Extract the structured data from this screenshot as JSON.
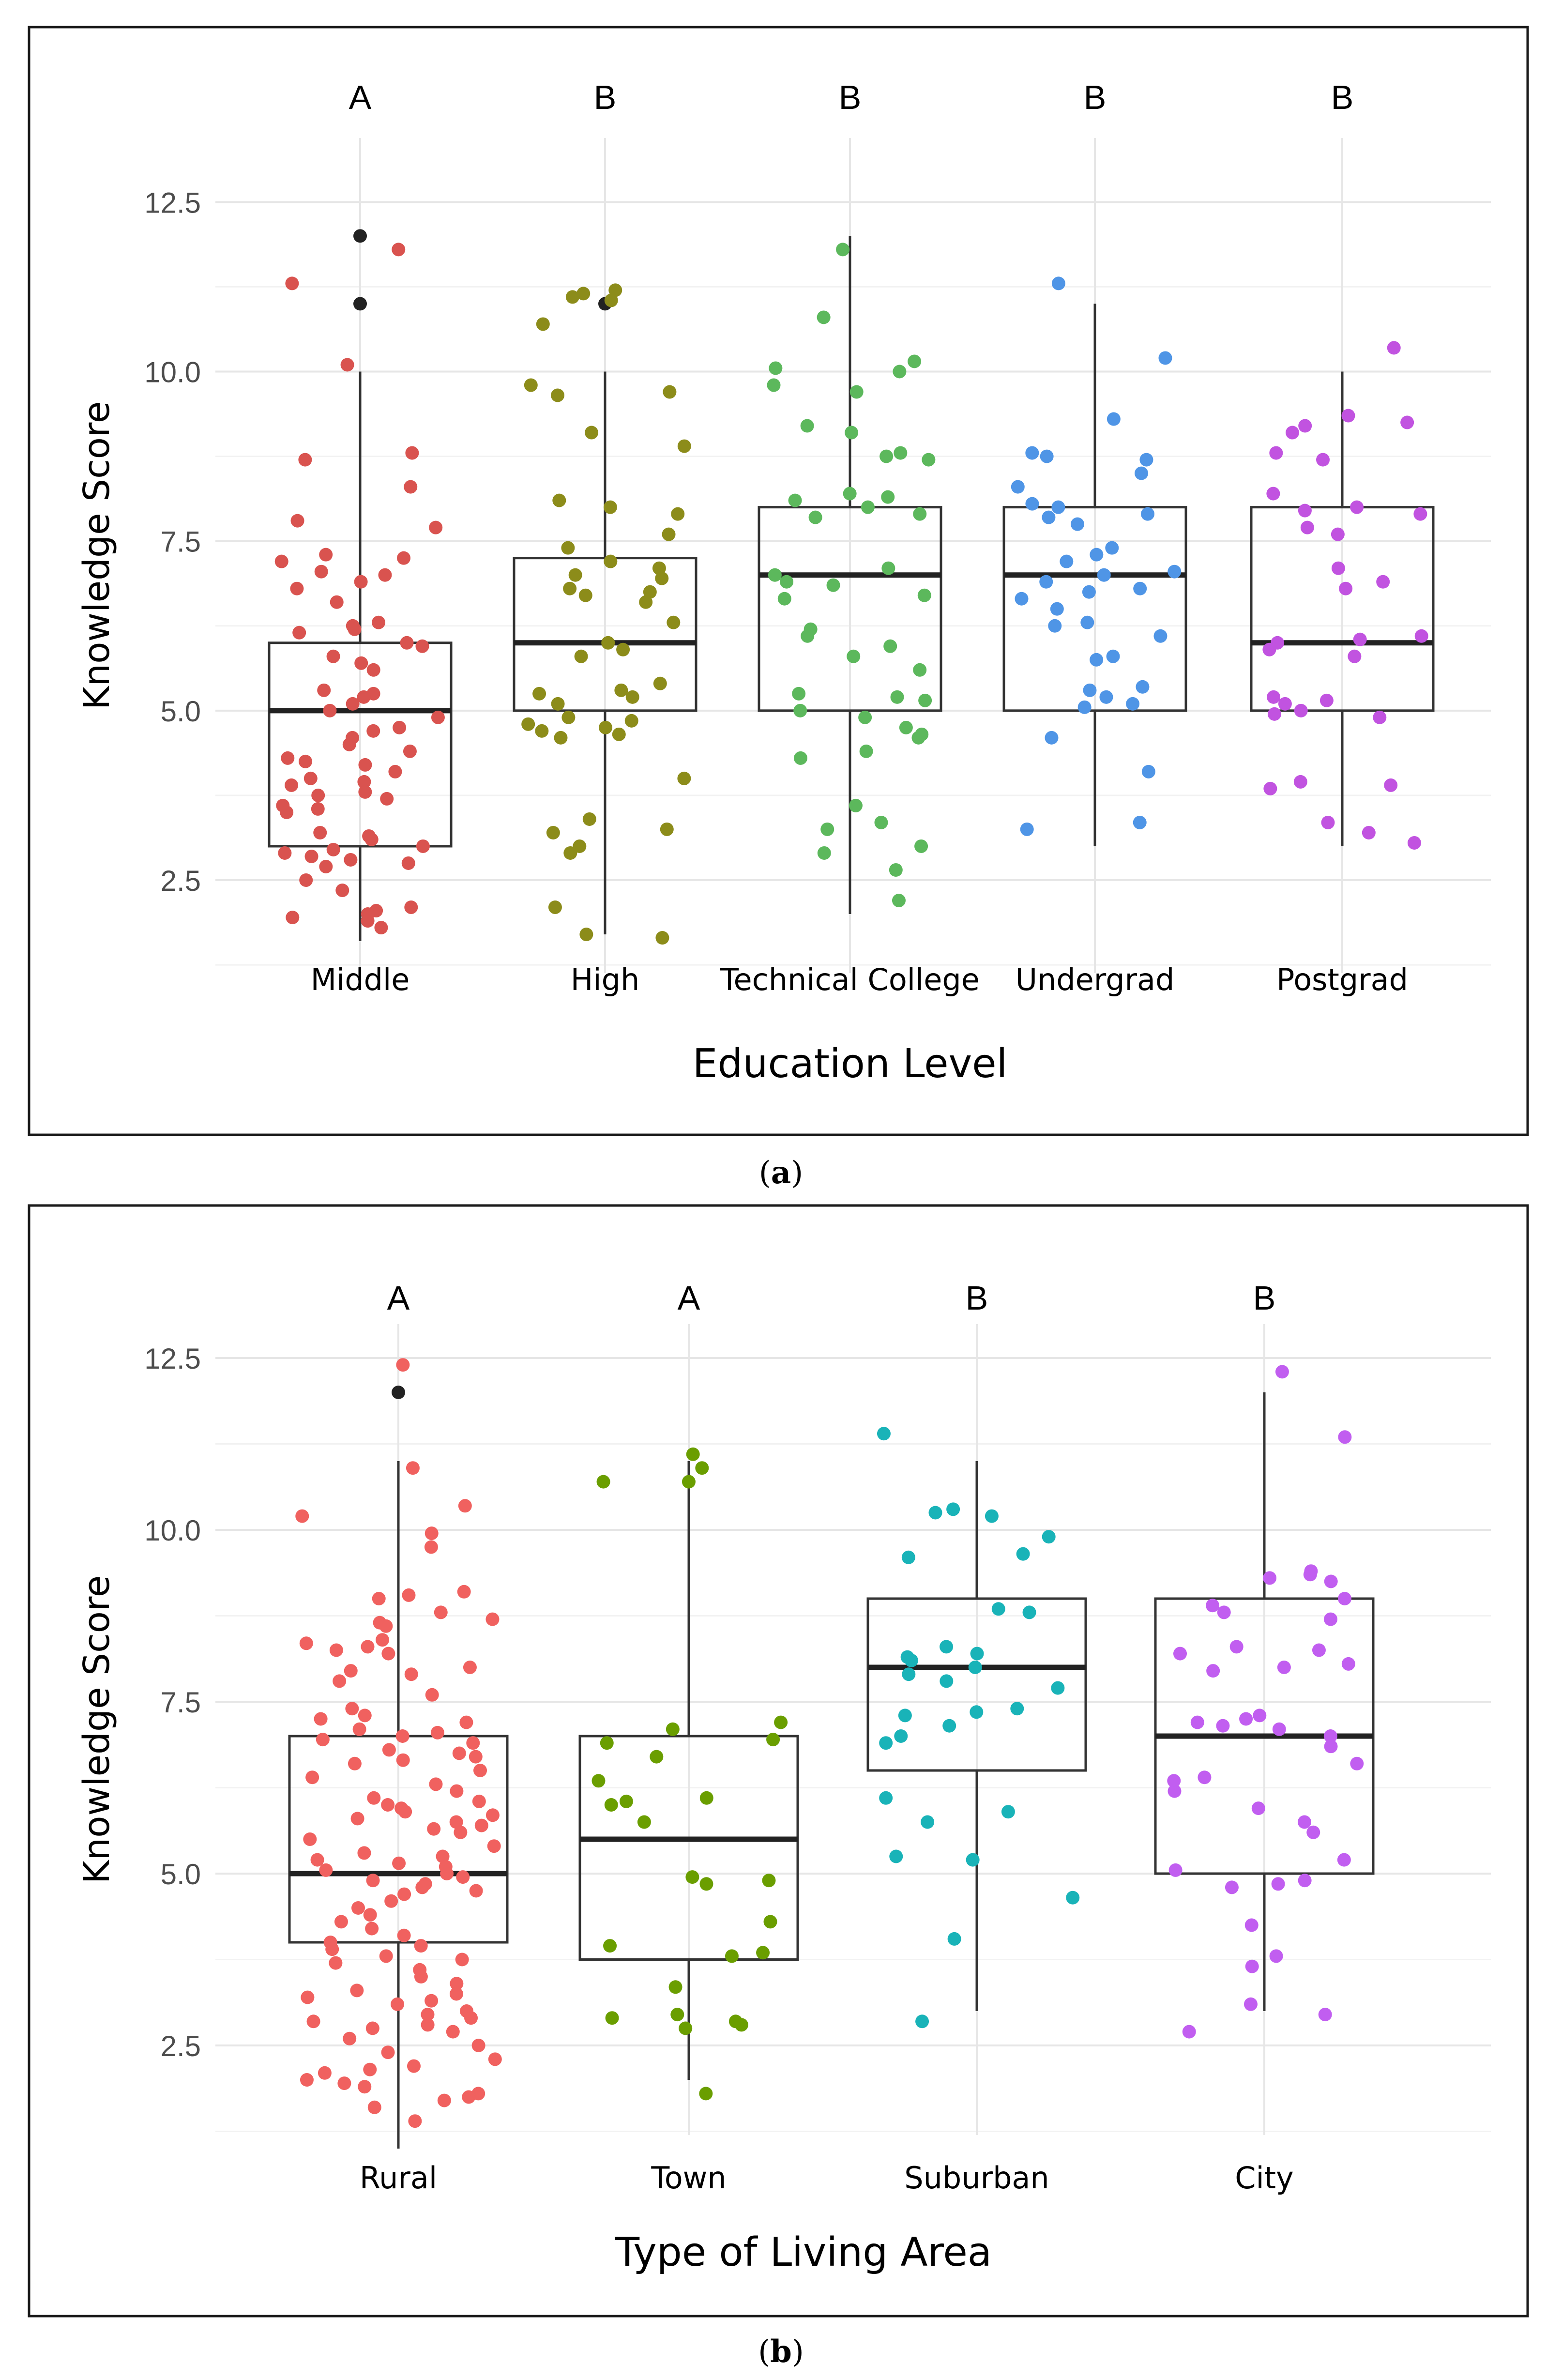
{
  "figure": {
    "caption_a_label": "a",
    "caption_b_label": "b"
  },
  "chart_data": [
    {
      "type": "box",
      "panel": "a",
      "title": "",
      "xlabel": "Education Level",
      "ylabel": "Knowledge Score",
      "ylim": [
        1.3,
        12.9
      ],
      "yticks": [
        2.5,
        5.0,
        7.5,
        10.0,
        12.5
      ],
      "ytick_labels": [
        "2.5",
        "5.0",
        "7.5",
        "10.0",
        "12.5"
      ],
      "grid": true,
      "legend": "none",
      "categories": [
        "Middle",
        "High",
        "Technical College",
        "Undergrad",
        "Postgrad"
      ],
      "group_letters": [
        "A",
        "B",
        "B",
        "B",
        "B"
      ],
      "colors": [
        "#d9534f",
        "#8c8c1a",
        "#5cb85c",
        "#4f95e6",
        "#c153e0"
      ],
      "outlier_color": "#222222",
      "boxes": [
        {
          "min": 1.6,
          "q1": 3.0,
          "median": 5.0,
          "q3": 6.0,
          "max": 10.0,
          "outliers": [
            11.0,
            12.0
          ]
        },
        {
          "min": 1.7,
          "q1": 5.0,
          "median": 6.0,
          "q3": 7.25,
          "max": 10.0,
          "outliers": [
            11.0
          ]
        },
        {
          "min": 2.0,
          "q1": 5.0,
          "median": 7.0,
          "q3": 8.0,
          "max": 12.0,
          "outliers": []
        },
        {
          "min": 3.0,
          "q1": 5.0,
          "median": 7.0,
          "q3": 8.0,
          "max": 11.0,
          "outliers": []
        },
        {
          "min": 3.0,
          "q1": 5.0,
          "median": 6.0,
          "q3": 8.0,
          "max": 10.0,
          "outliers": []
        }
      ],
      "points": [
        [
          11.8,
          11.3,
          10.1,
          8.8,
          8.7,
          8.3,
          7.8,
          7.7,
          7.3,
          7.25,
          7.2,
          7.05,
          7.0,
          6.9,
          6.8,
          6.6,
          6.3,
          6.25,
          6.2,
          6.15,
          6.0,
          5.95,
          5.8,
          5.7,
          5.6,
          5.3,
          5.25,
          5.2,
          5.1,
          5.0,
          4.9,
          4.75,
          4.7,
          4.6,
          4.5,
          4.4,
          4.3,
          4.25,
          4.2,
          4.1,
          4.0,
          3.95,
          3.9,
          3.8,
          3.75,
          3.7,
          3.6,
          3.55,
          3.5,
          3.2,
          3.15,
          3.1,
          3.0,
          2.95,
          2.9,
          2.85,
          2.8,
          2.75,
          2.7,
          2.5,
          2.35,
          2.1,
          2.05,
          2.0,
          1.95,
          1.9,
          1.8
        ],
        [
          11.2,
          11.15,
          11.1,
          11.05,
          10.7,
          9.8,
          9.7,
          9.65,
          9.1,
          8.9,
          8.1,
          8.0,
          7.9,
          7.6,
          7.4,
          7.2,
          7.1,
          7.0,
          6.95,
          6.8,
          6.75,
          6.7,
          6.6,
          6.3,
          6.0,
          5.9,
          5.8,
          5.4,
          5.3,
          5.25,
          5.2,
          5.1,
          4.9,
          4.85,
          4.8,
          4.75,
          4.7,
          4.65,
          4.6,
          4.0,
          3.4,
          3.25,
          3.2,
          3.0,
          2.9,
          2.1,
          1.7,
          1.65
        ],
        [
          11.8,
          10.8,
          10.15,
          10.05,
          10.0,
          9.8,
          9.7,
          9.2,
          9.1,
          8.8,
          8.75,
          8.7,
          8.2,
          8.15,
          8.1,
          8.0,
          7.9,
          7.85,
          7.1,
          7.0,
          6.9,
          6.85,
          6.7,
          6.65,
          6.2,
          6.1,
          5.95,
          5.8,
          5.6,
          5.25,
          5.2,
          5.15,
          5.0,
          4.9,
          4.75,
          4.65,
          4.6,
          4.4,
          4.3,
          3.6,
          3.35,
          3.25,
          3.0,
          2.9,
          2.65,
          2.2
        ],
        [
          11.3,
          10.2,
          9.3,
          8.8,
          8.75,
          8.7,
          8.5,
          8.3,
          8.05,
          8.0,
          7.9,
          7.85,
          7.75,
          7.4,
          7.3,
          7.2,
          7.05,
          7.0,
          6.9,
          6.8,
          6.75,
          6.65,
          6.5,
          6.3,
          6.25,
          6.1,
          5.8,
          5.75,
          5.35,
          5.3,
          5.2,
          5.1,
          5.05,
          4.6,
          4.1,
          3.35,
          3.25
        ],
        [
          10.35,
          9.35,
          9.25,
          9.2,
          9.1,
          8.8,
          8.7,
          8.2,
          8.0,
          7.95,
          7.9,
          7.7,
          7.6,
          7.1,
          6.9,
          6.8,
          6.1,
          6.05,
          6.0,
          5.9,
          5.8,
          5.2,
          5.15,
          5.1,
          5.0,
          4.95,
          4.9,
          3.95,
          3.9,
          3.85,
          3.35,
          3.2,
          3.05
        ]
      ]
    },
    {
      "type": "box",
      "panel": "b",
      "title": "",
      "xlabel": "Type of Living Area",
      "ylabel": "Knowledge Score",
      "ylim": [
        1.2,
        12.8
      ],
      "yticks": [
        2.5,
        5.0,
        7.5,
        10.0,
        12.5
      ],
      "ytick_labels": [
        "2.5",
        "5.0",
        "7.5",
        "10.0",
        "12.5"
      ],
      "grid": true,
      "legend": "none",
      "categories": [
        "Rural",
        "Town",
        "Suburban",
        "City"
      ],
      "group_letters": [
        "A",
        "A",
        "B",
        "B"
      ],
      "colors": [
        "#f0615f",
        "#6a9e00",
        "#19b3b8",
        "#c15ef0"
      ],
      "outlier_color": "#222222",
      "boxes": [
        {
          "min": 1.0,
          "q1": 4.0,
          "median": 5.0,
          "q3": 7.0,
          "max": 11.0,
          "outliers": [
            12.0
          ]
        },
        {
          "min": 2.0,
          "q1": 3.75,
          "median": 5.5,
          "q3": 7.0,
          "max": 11.0,
          "outliers": []
        },
        {
          "min": 3.0,
          "q1": 6.5,
          "median": 8.0,
          "q3": 9.0,
          "max": 11.0,
          "outliers": []
        },
        {
          "min": 3.0,
          "q1": 5.0,
          "median": 7.0,
          "q3": 9.0,
          "max": 12.0,
          "outliers": []
        }
      ],
      "points": [
        [
          12.4,
          10.9,
          10.35,
          10.2,
          9.95,
          9.75,
          9.1,
          9.05,
          9.0,
          8.8,
          8.7,
          8.65,
          8.6,
          8.4,
          8.35,
          8.3,
          8.25,
          8.2,
          8.0,
          7.95,
          7.9,
          7.8,
          7.6,
          7.4,
          7.3,
          7.25,
          7.2,
          7.1,
          7.05,
          7.0,
          6.95,
          6.9,
          6.8,
          6.75,
          6.7,
          6.65,
          6.6,
          6.5,
          6.4,
          6.3,
          6.2,
          6.1,
          6.05,
          6.0,
          5.95,
          5.9,
          5.85,
          5.8,
          5.75,
          5.7,
          5.65,
          5.6,
          5.5,
          5.4,
          5.3,
          5.25,
          5.2,
          5.15,
          5.1,
          5.05,
          5.0,
          4.95,
          4.9,
          4.85,
          4.8,
          4.75,
          4.7,
          4.6,
          4.5,
          4.4,
          4.3,
          4.2,
          4.1,
          4.0,
          3.95,
          3.9,
          3.8,
          3.75,
          3.7,
          3.6,
          3.5,
          3.4,
          3.3,
          3.25,
          3.2,
          3.15,
          3.1,
          3.0,
          2.95,
          2.9,
          2.85,
          2.8,
          2.75,
          2.7,
          2.6,
          2.5,
          2.4,
          2.3,
          2.2,
          2.15,
          2.1,
          2.0,
          1.95,
          1.9,
          1.8,
          1.75,
          1.7,
          1.6,
          1.4
        ],
        [
          11.1,
          10.9,
          10.7,
          10.7,
          7.2,
          7.1,
          6.95,
          6.9,
          6.7,
          6.35,
          6.1,
          6.05,
          6.0,
          5.75,
          4.95,
          4.9,
          4.85,
          4.3,
          3.95,
          3.85,
          3.8,
          3.35,
          2.95,
          2.9,
          2.85,
          2.8,
          2.75,
          1.8
        ],
        [
          11.4,
          10.3,
          10.25,
          10.2,
          9.9,
          9.65,
          9.6,
          8.85,
          8.8,
          8.3,
          8.2,
          8.15,
          8.1,
          8.0,
          7.9,
          7.8,
          7.7,
          7.4,
          7.35,
          7.3,
          7.15,
          7.0,
          6.9,
          6.1,
          5.9,
          5.75,
          5.25,
          5.2,
          4.65,
          4.05,
          2.85
        ],
        [
          12.3,
          11.35,
          9.4,
          9.35,
          9.3,
          9.25,
          9.0,
          8.9,
          8.8,
          8.7,
          8.3,
          8.25,
          8.2,
          8.05,
          8.0,
          7.95,
          7.3,
          7.25,
          7.2,
          7.15,
          7.1,
          7.0,
          6.85,
          6.6,
          6.4,
          6.35,
          6.2,
          5.95,
          5.75,
          5.6,
          5.2,
          5.05,
          4.9,
          4.85,
          4.8,
          4.25,
          3.8,
          3.65,
          3.1,
          2.95,
          2.7
        ]
      ]
    }
  ]
}
